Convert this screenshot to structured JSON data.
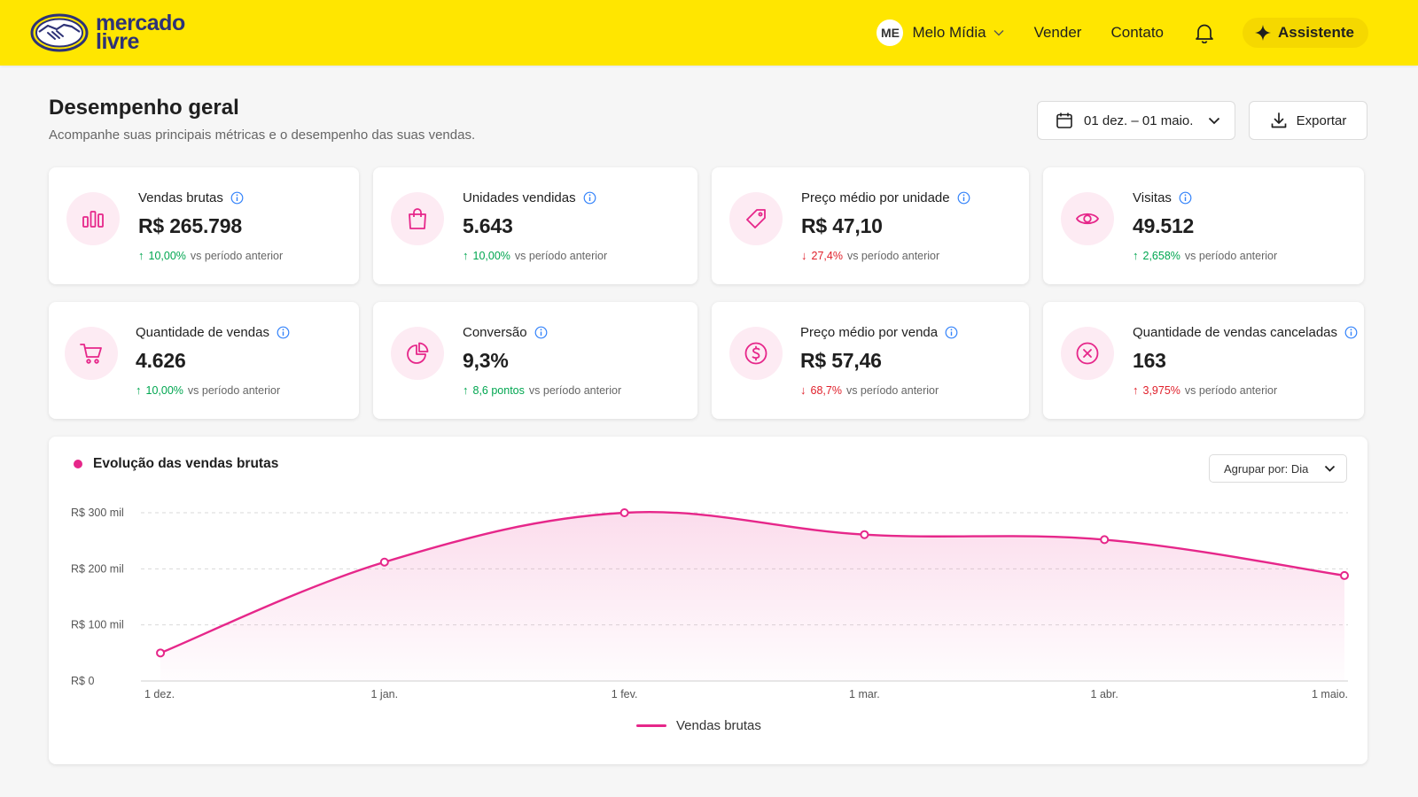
{
  "header": {
    "logo_line1": "mercado",
    "logo_line2": "livre",
    "account_initials": "ME",
    "account_name": "Melo Mídia",
    "nav_sell": "Vender",
    "nav_contact": "Contato",
    "assistant_label": "Assistente",
    "brand_color": "#ffe600"
  },
  "page": {
    "title": "Desempenho geral",
    "subtitle": "Acompanhe suas principais métricas e o desempenho das suas vendas.",
    "date_range": "01 dez. – 01 maio.",
    "export_label": "Exportar"
  },
  "kpis": [
    {
      "label": "Vendas brutas",
      "value": "R$ 265.798",
      "delta": "10,00%",
      "trend": "up",
      "delta_sub": "vs período anterior",
      "icon": "bar-chart-icon"
    },
    {
      "label": "Unidades vendidas",
      "value": "5.643",
      "delta": "10,00%",
      "trend": "up",
      "delta_sub": "vs período anterior",
      "icon": "shopping-bag-icon"
    },
    {
      "label": "Preço médio por unidade",
      "value": "R$ 47,10",
      "delta": "27,4%",
      "trend": "down",
      "delta_sub": "vs período anterior",
      "icon": "price-tag-icon"
    },
    {
      "label": "Visitas",
      "value": "49.512",
      "delta": "2,658%",
      "trend": "up",
      "delta_sub": "vs período anterior",
      "icon": "eye-icon"
    },
    {
      "label": "Quantidade de vendas",
      "value": "4.626",
      "delta": "10,00%",
      "trend": "up",
      "delta_sub": "vs período anterior",
      "icon": "shopping-cart-icon"
    },
    {
      "label": "Conversão",
      "value": "9,3%",
      "delta": "8,6 pontos",
      "trend": "up",
      "delta_sub": "vs período anterior",
      "icon": "pie-chart-icon"
    },
    {
      "label": "Preço médio por venda",
      "value": "R$ 57,46",
      "delta": "68,7%",
      "trend": "down",
      "delta_sub": "vs período anterior",
      "icon": "dollar-coin-icon"
    },
    {
      "label": "Quantidade de vendas canceladas",
      "value": "163",
      "delta": "3,975%",
      "trend": "down",
      "delta_sub": "vs período anterior",
      "icon": "cancel-circle-icon"
    }
  ],
  "chart": {
    "title": "Evolução das vendas brutas",
    "group_by": "Agrupar por: Dia",
    "legend": "Vendas brutas",
    "accent": "#e6278a"
  },
  "chart_data": {
    "type": "line",
    "title": "Evolução das vendas brutas",
    "xlabel": "",
    "ylabel": "",
    "x": [
      "1 dez.",
      "1 jan.",
      "1 fev.",
      "1 mar.",
      "1 abr.",
      "1 maio."
    ],
    "y_ticks": [
      "R$ 0",
      "R$ 100 mil",
      "R$ 200 mil",
      "R$ 300 mil"
    ],
    "ylim": [
      0,
      300000
    ],
    "grid": true,
    "legend_position": "bottom-center",
    "series": [
      {
        "name": "Vendas brutas",
        "points": [
          {
            "x": "3 dez.",
            "y": 50000
          },
          {
            "x": "1 jan.",
            "y": 212000
          },
          {
            "x": "1 fev.",
            "y": 300000
          },
          {
            "x": "1 mar.",
            "y": 261000
          },
          {
            "x": "1 abr.",
            "y": 252000
          },
          {
            "x": "1 maio.",
            "y": 188000
          }
        ]
      }
    ]
  }
}
